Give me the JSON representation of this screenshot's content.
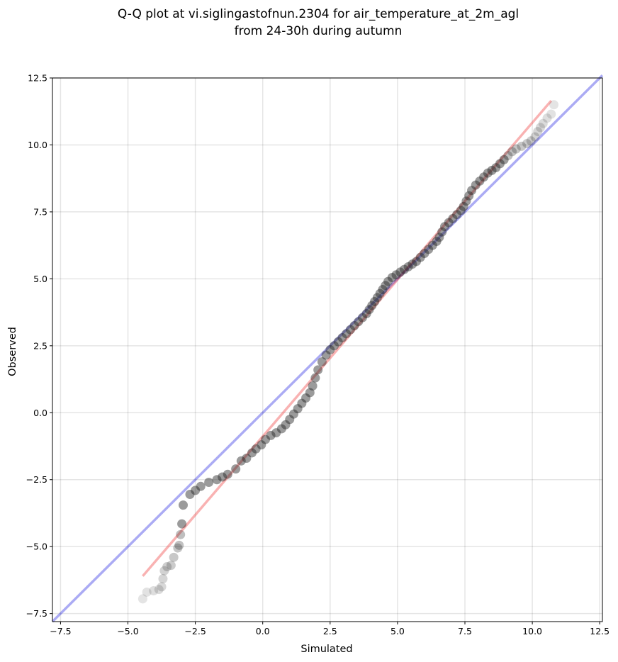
{
  "chart_data": {
    "type": "scatter",
    "title": [
      "Q-Q plot at vi.siglingastofnun.2304 for air_temperature_at_2m_agl",
      "from 24-30h during autumn"
    ],
    "xlabel": "Simulated",
    "ylabel": "Observed",
    "xlim": [
      -7.8,
      12.6
    ],
    "ylim": [
      -7.8,
      12.5
    ],
    "x_ticks": [
      -7.5,
      -5.0,
      -2.5,
      0.0,
      2.5,
      5.0,
      7.5,
      10.0,
      12.5
    ],
    "y_ticks": [
      -7.5,
      -5.0,
      -2.5,
      0.0,
      2.5,
      5.0,
      7.5,
      10.0,
      12.5
    ],
    "x_tick_labels": [
      "−7.5",
      "−5.0",
      "−2.5",
      "0.0",
      "2.5",
      "5.0",
      "7.5",
      "10.0",
      "12.5"
    ],
    "y_tick_labels": [
      "−7.5",
      "−5.0",
      "−2.5",
      "0.0",
      "2.5",
      "5.0",
      "7.5",
      "10.0",
      "12.5"
    ],
    "grid": true,
    "quantiles": [
      [
        -4.45,
        -6.95
      ],
      [
        -4.3,
        -6.7
      ],
      [
        -4.05,
        -6.65
      ],
      [
        -3.85,
        -6.6
      ],
      [
        -3.75,
        -6.5
      ],
      [
        -3.7,
        -6.2
      ],
      [
        -3.65,
        -5.9
      ],
      [
        -3.55,
        -5.75
      ],
      [
        -3.4,
        -5.7
      ],
      [
        -3.3,
        -5.4
      ],
      [
        -3.15,
        -5.05
      ],
      [
        -3.1,
        -4.95
      ],
      [
        -3.05,
        -4.55
      ],
      [
        -3.0,
        -4.15
      ],
      [
        -2.95,
        -3.45
      ],
      [
        -2.7,
        -3.05
      ],
      [
        -2.5,
        -2.9
      ],
      [
        -2.3,
        -2.75
      ],
      [
        -2.0,
        -2.6
      ],
      [
        -1.7,
        -2.5
      ],
      [
        -1.5,
        -2.4
      ],
      [
        -1.3,
        -2.3
      ],
      [
        -1.0,
        -2.1
      ],
      [
        -0.8,
        -1.8
      ],
      [
        -0.6,
        -1.7
      ],
      [
        -0.4,
        -1.5
      ],
      [
        -0.25,
        -1.35
      ],
      [
        -0.05,
        -1.2
      ],
      [
        0.1,
        -1.0
      ],
      [
        0.3,
        -0.85
      ],
      [
        0.5,
        -0.75
      ],
      [
        0.7,
        -0.6
      ],
      [
        0.85,
        -0.45
      ],
      [
        1.0,
        -0.25
      ],
      [
        1.15,
        -0.05
      ],
      [
        1.3,
        0.15
      ],
      [
        1.45,
        0.35
      ],
      [
        1.6,
        0.55
      ],
      [
        1.75,
        0.75
      ],
      [
        1.85,
        1.0
      ],
      [
        1.95,
        1.3
      ],
      [
        2.05,
        1.6
      ],
      [
        2.2,
        1.9
      ],
      [
        2.35,
        2.15
      ],
      [
        2.5,
        2.35
      ],
      [
        2.65,
        2.5
      ],
      [
        2.8,
        2.65
      ],
      [
        2.95,
        2.8
      ],
      [
        3.1,
        2.95
      ],
      [
        3.25,
        3.1
      ],
      [
        3.4,
        3.25
      ],
      [
        3.55,
        3.4
      ],
      [
        3.7,
        3.55
      ],
      [
        3.85,
        3.7
      ],
      [
        3.95,
        3.85
      ],
      [
        4.05,
        4.0
      ],
      [
        4.15,
        4.15
      ],
      [
        4.25,
        4.3
      ],
      [
        4.35,
        4.45
      ],
      [
        4.45,
        4.6
      ],
      [
        4.55,
        4.75
      ],
      [
        4.65,
        4.9
      ],
      [
        4.8,
        5.05
      ],
      [
        4.95,
        5.15
      ],
      [
        5.1,
        5.25
      ],
      [
        5.25,
        5.35
      ],
      [
        5.4,
        5.45
      ],
      [
        5.55,
        5.55
      ],
      [
        5.7,
        5.65
      ],
      [
        5.85,
        5.8
      ],
      [
        6.0,
        5.95
      ],
      [
        6.15,
        6.1
      ],
      [
        6.3,
        6.25
      ],
      [
        6.45,
        6.4
      ],
      [
        6.55,
        6.55
      ],
      [
        6.65,
        6.75
      ],
      [
        6.75,
        6.95
      ],
      [
        6.9,
        7.1
      ],
      [
        7.05,
        7.25
      ],
      [
        7.2,
        7.4
      ],
      [
        7.35,
        7.55
      ],
      [
        7.45,
        7.7
      ],
      [
        7.55,
        7.9
      ],
      [
        7.65,
        8.1
      ],
      [
        7.75,
        8.3
      ],
      [
        7.9,
        8.5
      ],
      [
        8.05,
        8.65
      ],
      [
        8.2,
        8.8
      ],
      [
        8.35,
        8.95
      ],
      [
        8.5,
        9.05
      ],
      [
        8.65,
        9.15
      ],
      [
        8.8,
        9.3
      ],
      [
        8.95,
        9.45
      ],
      [
        9.1,
        9.6
      ],
      [
        9.25,
        9.75
      ],
      [
        9.4,
        9.85
      ],
      [
        9.6,
        9.95
      ],
      [
        9.8,
        10.05
      ],
      [
        9.95,
        10.15
      ],
      [
        10.1,
        10.3
      ],
      [
        10.2,
        10.5
      ],
      [
        10.3,
        10.65
      ],
      [
        10.4,
        10.8
      ],
      [
        10.55,
        11.0
      ],
      [
        10.7,
        11.15
      ],
      [
        10.8,
        11.5
      ]
    ],
    "reference_line": {
      "color": "#0000dd",
      "from": [
        -7.8,
        -7.8
      ],
      "to": [
        12.6,
        12.6
      ]
    },
    "fit_line": {
      "color": "#ee2222",
      "from": [
        -4.45,
        -6.1
      ],
      "to": [
        10.7,
        11.65
      ]
    },
    "point_color": "#222222"
  }
}
